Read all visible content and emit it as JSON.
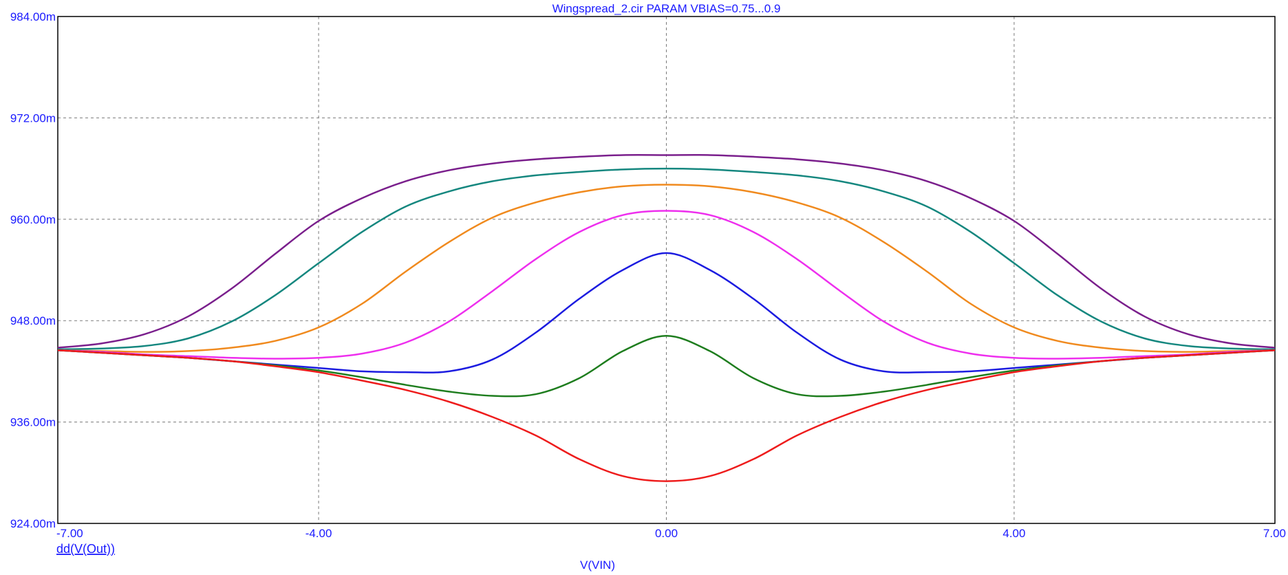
{
  "chart_data": {
    "type": "line",
    "title": "Wingspread_2.cir PARAM VBIAS=0.75...0.9",
    "xlabel": "V(VIN)",
    "ylabel": "dd(V(Out))",
    "xlim": [
      -7,
      7
    ],
    "ylim": [
      924,
      984
    ],
    "grid": true,
    "x_ticks": [
      -7,
      -4,
      0,
      4,
      7
    ],
    "x_tick_labels": [
      "-7.00",
      "-4.00",
      "0.00",
      "4.00",
      "7.00"
    ],
    "y_ticks": [
      924,
      936,
      948,
      960,
      972,
      984
    ],
    "y_tick_labels": [
      "924.00m",
      "936.00m",
      "948.00m",
      "960.00m",
      "972.00m",
      "984.00m"
    ],
    "x": [
      -7,
      -6.5,
      -6,
      -5.5,
      -5,
      -4.5,
      -4,
      -3.5,
      -3,
      -2.5,
      -2,
      -1.5,
      -1,
      -0.5,
      0,
      0.5,
      1,
      1.5,
      2,
      2.5,
      3,
      3.5,
      4,
      4.5,
      5,
      5.5,
      6,
      6.5,
      7
    ],
    "series": [
      {
        "color": "#7a1f8c",
        "values": [
          944.8,
          945.3,
          946.4,
          948.5,
          951.8,
          955.9,
          959.8,
          962.5,
          964.5,
          965.8,
          966.6,
          967.1,
          967.4,
          967.6,
          967.6,
          967.6,
          967.4,
          967.1,
          966.6,
          965.8,
          964.5,
          962.5,
          959.8,
          955.9,
          951.8,
          948.5,
          946.4,
          945.3,
          944.8
        ]
      },
      {
        "color": "#15877f",
        "values": [
          944.6,
          944.7,
          945.0,
          945.9,
          947.9,
          951.0,
          954.8,
          958.5,
          961.5,
          963.3,
          964.5,
          965.2,
          965.6,
          965.9,
          966.0,
          965.9,
          965.6,
          965.2,
          964.5,
          963.3,
          961.5,
          958.5,
          954.8,
          951.0,
          947.9,
          945.9,
          945.0,
          944.7,
          944.6
        ]
      },
      {
        "color": "#f08a1e",
        "values": [
          944.5,
          944.4,
          944.3,
          944.4,
          944.8,
          945.6,
          947.2,
          950.0,
          953.8,
          957.3,
          960.2,
          962.0,
          963.2,
          963.9,
          964.1,
          963.9,
          963.2,
          962.0,
          960.2,
          957.3,
          953.8,
          950.0,
          947.2,
          945.6,
          944.8,
          944.4,
          944.3,
          944.4,
          944.5
        ]
      },
      {
        "color": "#ee2fee",
        "values": [
          944.5,
          944.3,
          944.0,
          943.8,
          943.6,
          943.5,
          943.6,
          944.1,
          945.4,
          947.9,
          951.5,
          955.3,
          958.5,
          960.5,
          961.0,
          960.5,
          958.5,
          955.3,
          951.5,
          947.9,
          945.4,
          944.1,
          943.6,
          943.5,
          943.6,
          943.8,
          944.0,
          944.3,
          944.5
        ]
      },
      {
        "color": "#1c1ce0",
        "values": [
          944.5,
          944.2,
          943.9,
          943.6,
          943.2,
          942.8,
          942.4,
          942.0,
          941.9,
          942.0,
          943.4,
          946.6,
          950.6,
          954.0,
          956.0,
          954.0,
          950.6,
          946.6,
          943.4,
          942.0,
          941.9,
          942.0,
          942.4,
          942.8,
          943.2,
          943.6,
          943.9,
          944.2,
          944.5
        ]
      },
      {
        "color": "#1e7d1e",
        "values": [
          944.5,
          944.2,
          943.9,
          943.6,
          943.2,
          942.7,
          942.1,
          941.3,
          940.4,
          939.6,
          939.1,
          939.3,
          941.2,
          944.4,
          946.2,
          944.4,
          941.2,
          939.3,
          939.1,
          939.6,
          940.4,
          941.3,
          942.1,
          942.7,
          943.2,
          943.6,
          943.9,
          944.2,
          944.5
        ]
      },
      {
        "color": "#ee1c1c",
        "values": [
          944.5,
          944.2,
          943.9,
          943.6,
          943.2,
          942.6,
          941.9,
          940.9,
          939.8,
          938.4,
          936.6,
          934.4,
          931.6,
          929.6,
          929.0,
          929.6,
          931.6,
          934.4,
          936.6,
          938.4,
          939.8,
          940.9,
          941.9,
          942.6,
          943.2,
          943.6,
          943.9,
          944.2,
          944.5
        ]
      }
    ]
  }
}
